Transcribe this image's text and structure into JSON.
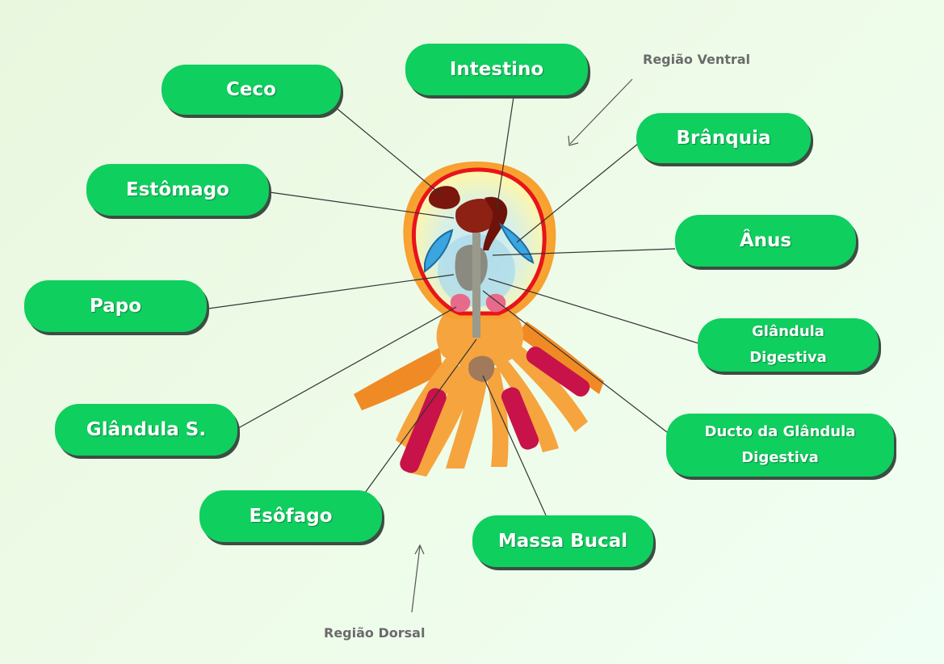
{
  "labels": {
    "ceco": "Ceco",
    "intestino": "Intestino",
    "branquia": "Brânquia",
    "estomago": "Estômago",
    "anus": "Ânus",
    "papo": "Papo",
    "glandula_digestiva": "Glândula\nDigestiva",
    "glandula_s": "Glândula S.",
    "ducto": "Ducto da Glândula\nDigestiva",
    "esofago": "Esôfago",
    "massa_bucal": "Massa Bucal"
  },
  "regions": {
    "ventral": "Região Ventral",
    "dorsal": "Região Dorsal"
  },
  "colors": {
    "label_fill": "#0fcf5f",
    "label_shadow": "#3c4d43",
    "mantle_outline": "#e8141b",
    "tentacle": "#f6a43d",
    "sucker": "#c8124a",
    "organs": "#7a160e",
    "gill": "#3aa5e0"
  }
}
